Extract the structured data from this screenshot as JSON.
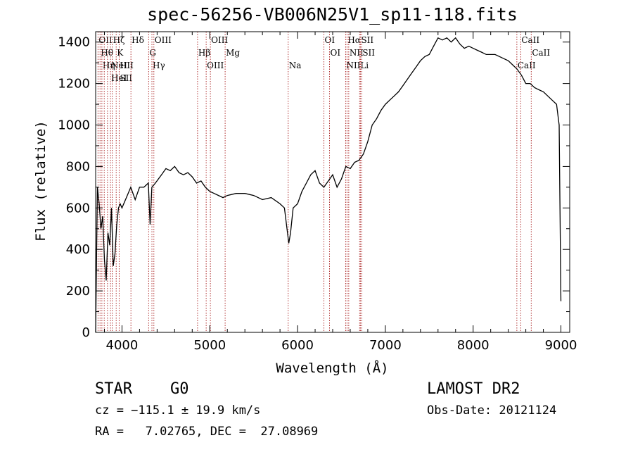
{
  "chart_data": {
    "type": "line",
    "title": "spec-56256-VB006N25V1_sp11-118.fits",
    "xlabel": "Wavelength (Å)",
    "ylabel": "Flux (relative)",
    "xlim": [
      3700,
      9100
    ],
    "ylim": [
      0,
      1450
    ],
    "xticks": [
      4000,
      5000,
      6000,
      7000,
      8000,
      9000
    ],
    "yticks": [
      0,
      200,
      400,
      600,
      800,
      1000,
      1200,
      1400
    ],
    "line_color": "#000000",
    "grid": false,
    "series": [
      {
        "x": [
          3700,
          3720,
          3740,
          3760,
          3780,
          3800,
          3820,
          3840,
          3860,
          3880,
          3900,
          3920,
          3940,
          3960,
          3980,
          4000,
          4050,
          4100,
          4150,
          4200,
          4250,
          4300,
          4320,
          4340,
          4380,
          4450,
          4500,
          4550,
          4600,
          4650,
          4700,
          4750,
          4800,
          4850,
          4900,
          4950,
          5000,
          5050,
          5100,
          5150,
          5200,
          5300,
          5400,
          5500,
          5600,
          5700,
          5800,
          5850,
          5900,
          5920,
          5950,
          6000,
          6050,
          6100,
          6150,
          6200,
          6250,
          6300,
          6350,
          6400,
          6450,
          6500,
          6550,
          6600,
          6650,
          6700,
          6750,
          6800,
          6850,
          6900,
          6950,
          7000,
          7050,
          7100,
          7150,
          7200,
          7250,
          7300,
          7350,
          7400,
          7450,
          7500,
          7550,
          7600,
          7650,
          7700,
          7750,
          7800,
          7850,
          7900,
          7950,
          8000,
          8050,
          8100,
          8150,
          8200,
          8250,
          8300,
          8350,
          8400,
          8450,
          8500,
          8550,
          8600,
          8650,
          8700,
          8750,
          8800,
          8850,
          8900,
          8950,
          8980,
          9000
        ],
        "y": [
          0,
          700,
          620,
          500,
          560,
          350,
          250,
          480,
          420,
          600,
          320,
          380,
          520,
          600,
          620,
          600,
          650,
          700,
          640,
          700,
          700,
          720,
          520,
          700,
          720,
          760,
          790,
          780,
          800,
          770,
          760,
          770,
          750,
          720,
          730,
          700,
          680,
          670,
          660,
          650,
          660,
          670,
          670,
          660,
          640,
          650,
          620,
          600,
          430,
          480,
          600,
          620,
          680,
          720,
          760,
          780,
          720,
          700,
          730,
          760,
          700,
          740,
          800,
          790,
          820,
          830,
          860,
          920,
          1000,
          1030,
          1070,
          1100,
          1120,
          1140,
          1160,
          1190,
          1220,
          1250,
          1280,
          1310,
          1330,
          1340,
          1380,
          1420,
          1410,
          1420,
          1400,
          1420,
          1390,
          1370,
          1380,
          1370,
          1360,
          1350,
          1340,
          1340,
          1340,
          1330,
          1320,
          1310,
          1290,
          1270,
          1240,
          1200,
          1200,
          1180,
          1170,
          1160,
          1140,
          1120,
          1100,
          1000,
          150
        ]
      }
    ],
    "lines": [
      {
        "x": 3727,
        "labels": [
          "OII"
        ]
      },
      {
        "x": 3750,
        "labels": [
          "Hθ"
        ]
      },
      {
        "x": 3771,
        "labels": [
          "Hη"
        ]
      },
      {
        "x": 3798,
        "labels": [
          ""
        ]
      },
      {
        "x": 3835,
        "labels": [
          ""
        ]
      },
      {
        "x": 3869,
        "labels": [
          "NeIII",
          "HeI"
        ]
      },
      {
        "x": 3889,
        "labels": [
          "Hζ"
        ]
      },
      {
        "x": 3934,
        "labels": [
          "K"
        ]
      },
      {
        "x": 3968,
        "labels": [
          "H",
          "SII"
        ]
      },
      {
        "x": 4102,
        "labels": [
          "Hδ"
        ]
      },
      {
        "x": 4304,
        "labels": [
          "G"
        ]
      },
      {
        "x": 4341,
        "labels": [
          "Hγ"
        ]
      },
      {
        "x": 4363,
        "labels": [
          "OIII"
        ]
      },
      {
        "x": 4861,
        "labels": [
          "Hβ"
        ]
      },
      {
        "x": 4959,
        "labels": [
          "OIII"
        ]
      },
      {
        "x": 5007,
        "labels": [
          "OIII"
        ]
      },
      {
        "x": 5175,
        "labels": [
          "Mg"
        ]
      },
      {
        "x": 5893,
        "labels": [
          "Na"
        ]
      },
      {
        "x": 6300,
        "labels": [
          "OI"
        ]
      },
      {
        "x": 6364,
        "labels": [
          "OI"
        ]
      },
      {
        "x": 6548,
        "labels": [
          "NII"
        ]
      },
      {
        "x": 6563,
        "labels": [
          "Hα"
        ]
      },
      {
        "x": 6583,
        "labels": [
          "NII"
        ]
      },
      {
        "x": 6707,
        "labels": [
          "Li"
        ]
      },
      {
        "x": 6716,
        "labels": [
          "SII"
        ]
      },
      {
        "x": 6731,
        "labels": [
          "SII"
        ]
      },
      {
        "x": 8498,
        "labels": [
          "CaII"
        ]
      },
      {
        "x": 8542,
        "labels": [
          "CaII"
        ]
      },
      {
        "x": 8662,
        "labels": [
          "CaII"
        ]
      }
    ],
    "line_marker_color": "#b03030"
  },
  "info": {
    "class": "STAR",
    "subclass": "G0",
    "survey": "LAMOST DR2",
    "cz": "cz = −115.1 ± 19.9 km/s",
    "obs_date": "Obs-Date: 20121124",
    "radec": "RA =   7.02765, DEC =  27.08969"
  }
}
